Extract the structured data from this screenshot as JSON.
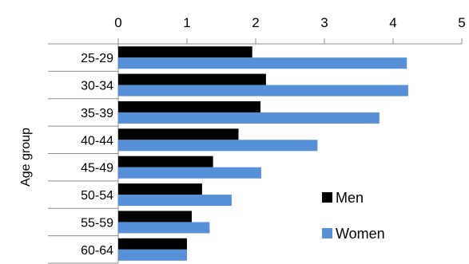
{
  "chart_data": {
    "type": "bar",
    "orientation": "horizontal",
    "title": "",
    "xlabel": "",
    "ylabel": "Age group",
    "xlim": [
      0,
      5
    ],
    "x_ticks": [
      "0",
      "1",
      "2",
      "3",
      "4",
      "5"
    ],
    "x_axis_position": "top",
    "categories": [
      "25-29",
      "30-34",
      "35-39",
      "40-44",
      "45-49",
      "50-54",
      "55-59",
      "60-64"
    ],
    "series": [
      {
        "name": "Men",
        "color": "#000000",
        "values": [
          1.95,
          2.15,
          2.07,
          1.75,
          1.38,
          1.22,
          1.07,
          1.0
        ]
      },
      {
        "name": "Women",
        "color": "#5590d8",
        "values": [
          4.2,
          4.22,
          3.8,
          2.9,
          2.08,
          1.65,
          1.33,
          1.0
        ]
      }
    ],
    "legend": {
      "position": "bottom-right",
      "entries": [
        "Men",
        "Women"
      ]
    },
    "grid": false
  }
}
